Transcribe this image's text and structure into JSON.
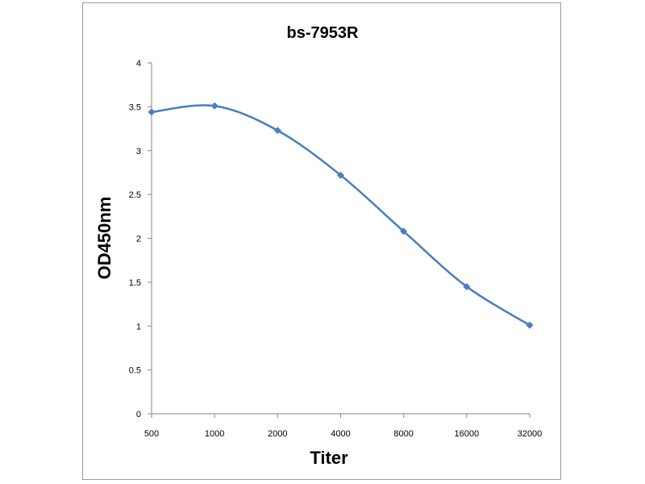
{
  "chart_data": {
    "type": "line",
    "title": "bs-7953R",
    "xlabel": "Titer",
    "ylabel": "OD450nm",
    "categories": [
      "500",
      "1000",
      "2000",
      "4000",
      "8000",
      "16000",
      "32000"
    ],
    "series": [
      {
        "values": [
          3.44,
          3.51,
          3.23,
          2.72,
          2.08,
          1.45,
          1.01
        ]
      }
    ],
    "yticks": [
      "0",
      "0.5",
      "1",
      "1.5",
      "2",
      "2.5",
      "3",
      "3.5",
      "4"
    ],
    "ylim": [
      0,
      4
    ],
    "grid": false,
    "legend": "none",
    "colors": {
      "line": "#4a7ebb",
      "marker": "#4a7ebb",
      "axis": "#868686"
    }
  }
}
